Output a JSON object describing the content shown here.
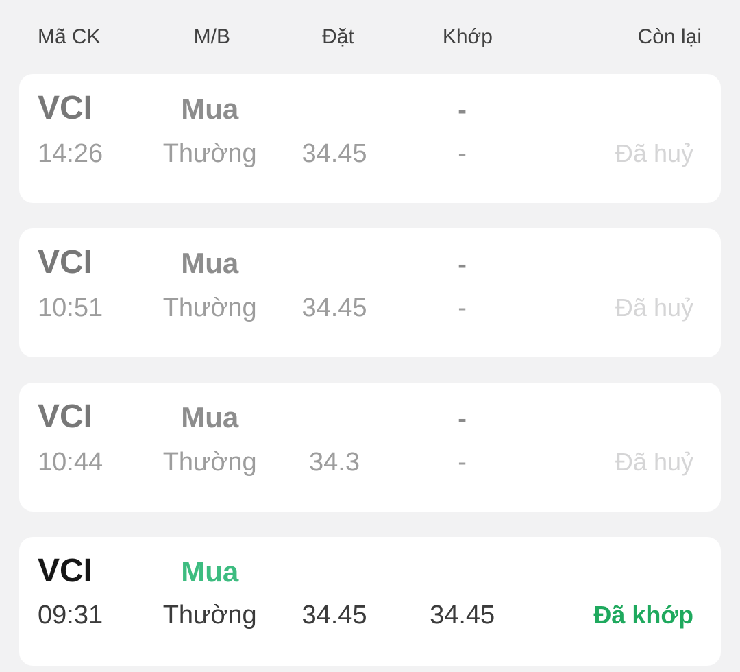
{
  "header": {
    "columns": [
      {
        "label": "Mã CK"
      },
      {
        "label": "M/B"
      },
      {
        "label": "Đặt"
      },
      {
        "label": "Khớp"
      },
      {
        "label": "Còn lại"
      }
    ]
  },
  "orders": [
    {
      "symbol": "VCI",
      "side": "Mua",
      "time": "14:26",
      "order_type": "Thường",
      "placed_price": "34.45",
      "matched_top": "-",
      "matched_price": "-",
      "status": "Đã huỷ",
      "state": "cancelled"
    },
    {
      "symbol": "VCI",
      "side": "Mua",
      "time": "10:51",
      "order_type": "Thường",
      "placed_price": "34.45",
      "matched_top": "-",
      "matched_price": "-",
      "status": "Đã huỷ",
      "state": "cancelled"
    },
    {
      "symbol": "VCI",
      "side": "Mua",
      "time": "10:44",
      "order_type": "Thường",
      "placed_price": "34.3",
      "matched_top": "-",
      "matched_price": "-",
      "status": "Đã huỷ",
      "state": "cancelled"
    },
    {
      "symbol": "VCI",
      "side": "Mua",
      "time": "09:31",
      "order_type": "Thường",
      "placed_price": "34.45",
      "matched_top": "",
      "matched_price": "34.45",
      "status": "Đã khớp",
      "state": "matched"
    }
  ],
  "colors": {
    "background": "#f2f2f3",
    "card": "#ffffff",
    "side_green": "#3dbc80",
    "status_green": "#1fa95e",
    "status_cancelled": "#d5d5d6"
  }
}
